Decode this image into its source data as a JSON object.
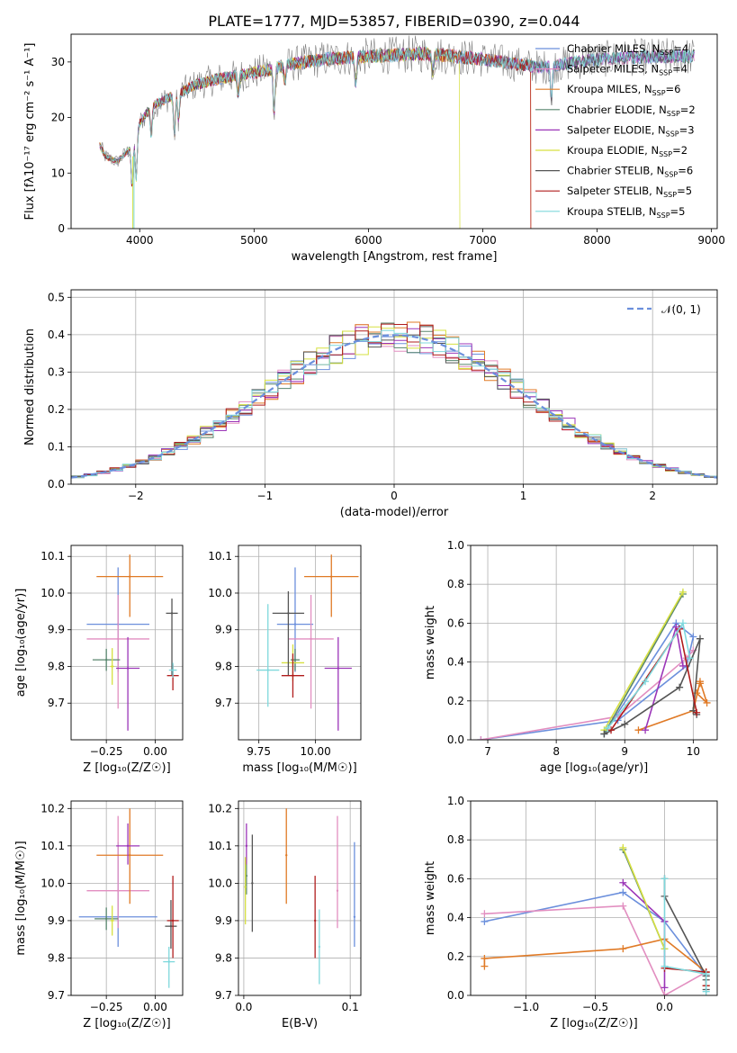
{
  "figure_title": "PLATE=1777, MJD=53857, FIBERID=0390, z=0.044",
  "colors": {
    "Chabrier MILES": "#6b8fdc",
    "Salpeter MILES": "#e28ec0",
    "Kroupa MILES": "#e07a26",
    "Chabrier ELODIE": "#58866e",
    "Salpeter ELODIE": "#9b35b8",
    "Kroupa ELODIE": "#d6e040",
    "Chabrier STELIB": "#555555",
    "Salpeter STELIB": "#b01c1c",
    "Kroupa STELIB": "#7fd8dc"
  },
  "chart_data": [
    {
      "type": "line",
      "id": "spectrum",
      "xlabel": "wavelength [Angstrom, rest frame]",
      "ylabel": "Flux [fλ10⁻¹⁷ erg cm⁻² s⁻¹ A⁻¹]",
      "xlim": [
        3400,
        9050
      ],
      "ylim": [
        0,
        35
      ],
      "xticks": [
        4000,
        5000,
        6000,
        7000,
        8000,
        9000
      ],
      "yticks": [
        0,
        10,
        20,
        30
      ],
      "grid": false,
      "legend_position": "top-right",
      "legend": [
        {
          "name": "Chabrier MILES",
          "nssp": "4"
        },
        {
          "name": "Salpeter MILES",
          "nssp": "4"
        },
        {
          "name": "Kroupa MILES",
          "nssp": "6"
        },
        {
          "name": "Chabrier ELODIE",
          "nssp": "2"
        },
        {
          "name": "Salpeter ELODIE",
          "nssp": "3"
        },
        {
          "name": "Kroupa ELODIE",
          "nssp": "2"
        },
        {
          "name": "Chabrier STELIB",
          "nssp": "6"
        },
        {
          "name": "Salpeter STELIB",
          "nssp": "5"
        },
        {
          "name": "Kroupa STELIB",
          "nssp": "5"
        }
      ],
      "continuum": {
        "x": [
          3650,
          3700,
          3800,
          3900,
          4000,
          4100,
          4300,
          4500,
          4700,
          5000,
          5300,
          5600,
          6000,
          6500,
          7000,
          7500,
          8000,
          8500,
          8850
        ],
        "y": [
          15,
          13,
          12,
          14,
          19,
          22,
          24,
          26,
          27,
          28,
          29.5,
          30.5,
          31,
          31.5,
          30.5,
          29,
          30.5,
          31,
          31
        ]
      },
      "cutoffs": {
        "Kroupa ELODIE": 6800,
        "Salpeter STELIB": 7420,
        "Kroupa MILES": 7420
      }
    },
    {
      "type": "line",
      "id": "residual-histogram",
      "xlabel": "(data-model)/error",
      "ylabel": "Normed distribution",
      "xlim": [
        -2.5,
        2.5
      ],
      "ylim": [
        0,
        0.52
      ],
      "xticks": [
        -2,
        -1,
        0,
        1,
        2
      ],
      "yticks": [
        0.0,
        0.1,
        0.2,
        0.3,
        0.4,
        0.5
      ],
      "grid": true,
      "legend_position": "top-right",
      "legend_label": "𝒩(0, 1)",
      "bin_width": 0.1,
      "reference_curve": "standard normal"
    },
    {
      "type": "scatter",
      "id": "age-vs-metallicity",
      "xlabel": "Z [log₁₀(Z/Z☉)]",
      "ylabel": "age  [log₁₀(age/yr)]",
      "xlim": [
        -0.43,
        0.14
      ],
      "ylim": [
        9.6,
        10.13
      ],
      "xticks": [
        -0.25,
        0.0
      ],
      "yticks": [
        9.7,
        9.8,
        9.9,
        10.0,
        10.1
      ],
      "grid": true,
      "points": [
        {
          "series": "Chabrier MILES",
          "x": -0.19,
          "xerr": [
            0.16,
            0.16
          ],
          "y": 9.915,
          "yerr": [
            0.13,
            0.155
          ]
        },
        {
          "series": "Salpeter MILES",
          "x": -0.19,
          "xerr": [
            0.16,
            0.16
          ],
          "y": 9.875,
          "yerr": [
            0.19,
            0.12
          ]
        },
        {
          "series": "Kroupa MILES",
          "x": -0.13,
          "xerr": [
            0.17,
            0.17
          ],
          "y": 10.045,
          "yerr": [
            0.11,
            0.06
          ]
        },
        {
          "series": "Chabrier ELODIE",
          "x": -0.25,
          "xerr": [
            0.07,
            0.07
          ],
          "y": 9.818,
          "yerr": [
            0.03,
            0.03
          ]
        },
        {
          "series": "Salpeter ELODIE",
          "x": -0.14,
          "xerr": [
            0.06,
            0.06
          ],
          "y": 9.795,
          "yerr": [
            0.17,
            0.085
          ]
        },
        {
          "series": "Kroupa ELODIE",
          "x": -0.22,
          "xerr": [
            0.01,
            0.01
          ],
          "y": 9.8,
          "yerr": [
            0.05,
            0.05
          ]
        },
        {
          "series": "Chabrier STELIB",
          "x": 0.085,
          "xerr": [
            0.03,
            0.03
          ],
          "y": 9.945,
          "yerr": [
            0.17,
            0.04
          ]
        },
        {
          "series": "Salpeter STELIB",
          "x": 0.09,
          "xerr": [
            0.03,
            0.03
          ],
          "y": 9.775,
          "yerr": [
            0.04,
            0.03
          ]
        },
        {
          "series": "Kroupa STELIB",
          "x": 0.09,
          "xerr": [
            0.02,
            0.02
          ],
          "y": 9.79,
          "yerr": [
            0.02,
            0.02
          ]
        }
      ]
    },
    {
      "type": "scatter",
      "id": "age-vs-mass",
      "xlabel": "mass [log₁₀(M/M☉)]",
      "ylabel": "",
      "xlim": [
        9.66,
        10.2
      ],
      "ylim": [
        9.6,
        10.13
      ],
      "xticks": [
        9.75,
        10.0
      ],
      "yticks": [
        9.7,
        9.8,
        9.9,
        10.0,
        10.1
      ],
      "grid": true,
      "points": [
        {
          "series": "Chabrier MILES",
          "x": 9.91,
          "xerr": [
            0.08,
            0.08
          ],
          "y": 9.915,
          "yerr": [
            0.13,
            0.155
          ]
        },
        {
          "series": "Salpeter MILES",
          "x": 9.98,
          "xerr": [
            0.1,
            0.1
          ],
          "y": 9.875,
          "yerr": [
            0.19,
            0.12
          ]
        },
        {
          "series": "Kroupa MILES",
          "x": 10.07,
          "xerr": [
            0.12,
            0.12
          ],
          "y": 10.045,
          "yerr": [
            0.11,
            0.06
          ]
        },
        {
          "series": "Chabrier ELODIE",
          "x": 9.91,
          "xerr": [
            0.02,
            0.02
          ],
          "y": 9.818,
          "yerr": [
            0.03,
            0.03
          ]
        },
        {
          "series": "Salpeter ELODIE",
          "x": 10.1,
          "xerr": [
            0.06,
            0.06
          ],
          "y": 9.795,
          "yerr": [
            0.17,
            0.085
          ]
        },
        {
          "series": "Kroupa ELODIE",
          "x": 9.9,
          "xerr": [
            0.05,
            0.05
          ],
          "y": 9.81,
          "yerr": [
            0.05,
            0.05
          ]
        },
        {
          "series": "Chabrier STELIB",
          "x": 9.88,
          "xerr": [
            0.07,
            0.07
          ],
          "y": 9.945,
          "yerr": [
            0.17,
            0.06
          ]
        },
        {
          "series": "Salpeter STELIB",
          "x": 9.9,
          "xerr": [
            0.05,
            0.05
          ],
          "y": 9.775,
          "yerr": [
            0.06,
            0.06
          ]
        },
        {
          "series": "Kroupa STELIB",
          "x": 9.79,
          "xerr": [
            0.05,
            0.05
          ],
          "y": 9.79,
          "yerr": [
            0.1,
            0.18
          ]
        }
      ]
    },
    {
      "type": "line",
      "id": "mass-weight-vs-age",
      "xlabel": "age  [log₁₀(age/yr)]",
      "ylabel": "mass weight",
      "xlim": [
        6.75,
        10.35
      ],
      "ylim": [
        0,
        1.0
      ],
      "xticks": [
        7,
        8,
        9,
        10
      ],
      "yticks": [
        0.0,
        0.2,
        0.4,
        0.6,
        0.8,
        1.0
      ],
      "grid": true,
      "series": [
        {
          "name": "Chabrier MILES",
          "x": [
            6.9,
            8.9,
            9.9,
            10.0,
            9.75,
            8.7
          ],
          "y": [
            0.0,
            0.1,
            0.38,
            0.53,
            0.6,
            0.03
          ]
        },
        {
          "name": "Salpeter MILES",
          "x": [
            6.9,
            8.9,
            9.9,
            10.0
          ],
          "y": [
            0.0,
            0.12,
            0.42,
            0.46
          ]
        },
        {
          "name": "Kroupa MILES",
          "x": [
            9.2,
            10.0,
            10.1,
            10.2,
            10.05,
            10.1
          ],
          "y": [
            0.05,
            0.15,
            0.3,
            0.19,
            0.24,
            0.29
          ]
        },
        {
          "name": "Chabrier ELODIE",
          "x": [
            8.7,
            9.85
          ],
          "y": [
            0.03,
            0.75
          ]
        },
        {
          "name": "Salpeter ELODIE",
          "x": [
            9.3,
            9.75,
            9.85
          ],
          "y": [
            0.05,
            0.58,
            0.38
          ]
        },
        {
          "name": "Kroupa ELODIE",
          "x": [
            8.7,
            9.85
          ],
          "y": [
            0.05,
            0.76
          ]
        },
        {
          "name": "Chabrier STELIB",
          "x": [
            8.7,
            9.0,
            9.8,
            10.1,
            10.0,
            10.05
          ],
          "y": [
            0.03,
            0.08,
            0.27,
            0.52,
            0.15,
            0.13
          ]
        },
        {
          "name": "Salpeter STELIB",
          "x": [
            8.8,
            9.8,
            10.05
          ],
          "y": [
            0.05,
            0.57,
            0.14
          ]
        },
        {
          "name": "Kroupa STELIB",
          "x": [
            8.75,
            9.3,
            9.85,
            9.95
          ],
          "y": [
            0.06,
            0.3,
            0.6,
            0.42
          ]
        }
      ]
    },
    {
      "type": "scatter",
      "id": "mass-vs-metallicity",
      "xlabel": "Z [log₁₀(Z/Z☉)]",
      "ylabel": "mass [log₁₀(M/M☉)]",
      "xlim": [
        -0.43,
        0.14
      ],
      "ylim": [
        9.7,
        10.22
      ],
      "xticks": [
        -0.25,
        0.0
      ],
      "yticks": [
        9.7,
        9.8,
        9.9,
        10.0,
        10.1,
        10.2
      ],
      "grid": true,
      "points": [
        {
          "series": "Chabrier MILES",
          "x": -0.19,
          "xerr": [
            0.2,
            0.2
          ],
          "y": 9.91,
          "yerr": [
            0.08,
            0.2
          ]
        },
        {
          "series": "Salpeter MILES",
          "x": -0.19,
          "xerr": [
            0.16,
            0.16
          ],
          "y": 9.98,
          "yerr": [
            0.1,
            0.2
          ]
        },
        {
          "series": "Kroupa MILES",
          "x": -0.13,
          "xerr": [
            0.17,
            0.17
          ],
          "y": 10.075,
          "yerr": [
            0.13,
            0.125
          ]
        },
        {
          "series": "Chabrier ELODIE",
          "x": -0.25,
          "xerr": [
            0.06,
            0.06
          ],
          "y": 9.905,
          "yerr": [
            0.03,
            0.03
          ]
        },
        {
          "series": "Salpeter ELODIE",
          "x": -0.14,
          "xerr": [
            0.06,
            0.06
          ],
          "y": 10.1,
          "yerr": [
            0.05,
            0.06
          ]
        },
        {
          "series": "Kroupa ELODIE",
          "x": -0.22,
          "xerr": [
            0.01,
            0.01
          ],
          "y": 9.9,
          "yerr": [
            0.04,
            0.04
          ]
        },
        {
          "series": "Chabrier STELIB",
          "x": 0.08,
          "xerr": [
            0.03,
            0.03
          ],
          "y": 9.885,
          "yerr": [
            0.06,
            0.07
          ]
        },
        {
          "series": "Salpeter STELIB",
          "x": 0.09,
          "xerr": [
            0.03,
            0.03
          ],
          "y": 9.9,
          "yerr": [
            0.1,
            0.12
          ]
        },
        {
          "series": "Kroupa STELIB",
          "x": 0.07,
          "xerr": [
            0.03,
            0.03
          ],
          "y": 9.79,
          "yerr": [
            0.07,
            0.04
          ]
        }
      ]
    },
    {
      "type": "scatter",
      "id": "mass-vs-ebv",
      "xlabel": "E(B-V)",
      "ylabel": "",
      "xlim": [
        -0.005,
        0.11
      ],
      "ylim": [
        9.7,
        10.22
      ],
      "xticks": [
        0.0,
        0.1
      ],
      "yticks": [
        9.7,
        9.8,
        9.9,
        10.0,
        10.1,
        10.2
      ],
      "grid": true,
      "points": [
        {
          "series": "Chabrier MILES",
          "x": 0.104,
          "y": 9.91,
          "yerr": [
            0.08,
            0.2
          ]
        },
        {
          "series": "Salpeter MILES",
          "x": 0.088,
          "y": 9.98,
          "yerr": [
            0.1,
            0.2
          ]
        },
        {
          "series": "Kroupa MILES",
          "x": 0.04,
          "y": 10.075,
          "yerr": [
            0.13,
            0.125
          ]
        },
        {
          "series": "Chabrier ELODIE",
          "x": 0.0025,
          "y": 10.02,
          "yerr": [
            0.05,
            0.05
          ]
        },
        {
          "series": "Salpeter ELODIE",
          "x": 0.0025,
          "y": 10.1,
          "yerr": [
            0.05,
            0.06
          ]
        },
        {
          "series": "Kroupa ELODIE",
          "x": 0.0015,
          "y": 9.99,
          "yerr": [
            0.1,
            0.08
          ]
        },
        {
          "series": "Chabrier STELIB",
          "x": 0.008,
          "y": 10.0,
          "yerr": [
            0.13,
            0.13
          ]
        },
        {
          "series": "Salpeter STELIB",
          "x": 0.067,
          "y": 9.9,
          "yerr": [
            0.1,
            0.12
          ]
        },
        {
          "series": "Kroupa STELIB",
          "x": 0.071,
          "y": 9.83,
          "yerr": [
            0.1,
            0.1
          ]
        }
      ]
    },
    {
      "type": "line",
      "id": "mass-weight-vs-metallicity",
      "xlabel": "Z [log₁₀(Z/Z☉)]",
      "ylabel": "mass weight",
      "xlim": [
        -1.4,
        0.38
      ],
      "ylim": [
        0,
        1.0
      ],
      "xticks": [
        -1.0,
        -0.5,
        0.0
      ],
      "yticks": [
        0.0,
        0.2,
        0.4,
        0.6,
        0.8,
        1.0
      ],
      "grid": true,
      "series": [
        {
          "name": "Chabrier MILES",
          "x": [
            -1.3,
            -0.3,
            0.0,
            0.3
          ],
          "y": [
            0.38,
            0.53,
            0.38,
            0.1
          ]
        },
        {
          "name": "Salpeter MILES",
          "x": [
            -1.3,
            -0.3,
            0.0,
            0.3
          ],
          "y": [
            0.42,
            0.46,
            0.0,
            0.12
          ]
        },
        {
          "name": "Kroupa MILES",
          "x": [
            -1.3,
            -1.3,
            -0.3,
            0.0,
            0.3,
            0.3
          ],
          "y": [
            0.15,
            0.19,
            0.24,
            0.29,
            0.12,
            0.05
          ]
        },
        {
          "name": "Chabrier ELODIE",
          "x": [
            -0.3,
            0.0
          ],
          "y": [
            0.75,
            0.24
          ]
        },
        {
          "name": "Salpeter ELODIE",
          "x": [
            -0.3,
            0.0,
            0.0
          ],
          "y": [
            0.58,
            0.38,
            0.04
          ]
        },
        {
          "name": "Kroupa ELODIE",
          "x": [
            -0.3,
            0.0
          ],
          "y": [
            0.76,
            0.24
          ]
        },
        {
          "name": "Chabrier STELIB",
          "x": [
            0.0,
            0.0,
            0.3,
            0.3,
            0.3
          ],
          "y": [
            0.6,
            0.51,
            0.1,
            0.08,
            0.03
          ]
        },
        {
          "name": "Salpeter STELIB",
          "x": [
            0.0,
            0.3,
            0.3
          ],
          "y": [
            0.14,
            0.12,
            0.05
          ]
        },
        {
          "name": "Kroupa STELIB",
          "x": [
            0.0,
            0.0,
            0.3,
            0.3
          ],
          "y": [
            0.6,
            0.15,
            0.11,
            0.02
          ]
        }
      ]
    }
  ]
}
